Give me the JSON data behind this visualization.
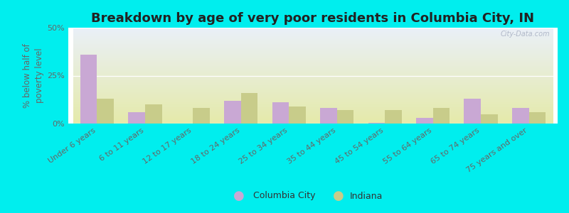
{
  "title": "Breakdown by age of very poor residents in Columbia City, IN",
  "ylabel": "% below half of\npoverty level",
  "categories": [
    "Under 6 years",
    "6 to 11 years",
    "12 to 17 years",
    "18 to 24 years",
    "25 to 34 years",
    "35 to 44 years",
    "45 to 54 years",
    "55 to 64 years",
    "65 to 74 years",
    "75 years and over"
  ],
  "columbia_city": [
    36,
    6,
    0,
    12,
    11,
    8,
    0.5,
    3,
    13,
    8
  ],
  "indiana": [
    13,
    10,
    8,
    16,
    9,
    7,
    7,
    8,
    5,
    6
  ],
  "columbia_city_color": "#c9a8d4",
  "indiana_color": "#c8cc8a",
  "background_outer": "#00eeee",
  "background_plot_top": "#eaf0f8",
  "background_plot_bottom": "#e5eaaa",
  "ylim": [
    0,
    50
  ],
  "yticks": [
    0,
    25,
    50
  ],
  "ytick_labels": [
    "0%",
    "25%",
    "50%"
  ],
  "title_fontsize": 13,
  "axis_label_fontsize": 8.5,
  "tick_fontsize": 8,
  "bar_width": 0.35,
  "legend_labels": [
    "Columbia City",
    "Indiana"
  ]
}
